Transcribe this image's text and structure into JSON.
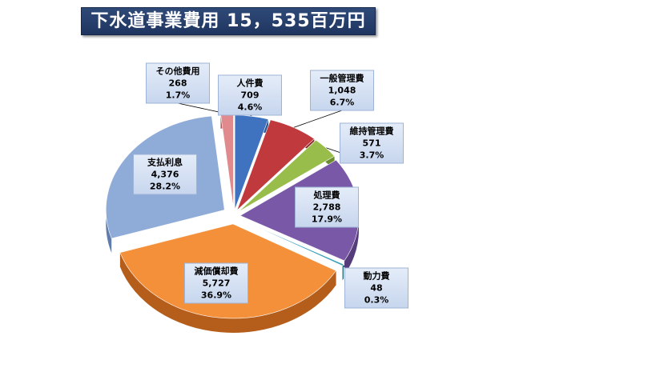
{
  "chart_data": {
    "type": "pie",
    "title": "下水道事業費用",
    "total_text": "15，535百万円",
    "slices": [
      {
        "name": "人件費",
        "value": "709",
        "pct": "4.6%",
        "v": 709,
        "color": "#3f73c0",
        "side": "#2a548f"
      },
      {
        "name": "一般管理費",
        "value": "1,048",
        "pct": "6.7%",
        "v": 1048,
        "color": "#c0393d",
        "side": "#8c2528"
      },
      {
        "name": "維持管理費",
        "value": "571",
        "pct": "3.7%",
        "v": 571,
        "color": "#98bd4a",
        "side": "#6d8c31"
      },
      {
        "name": "処理費",
        "value": "2,788",
        "pct": "17.9%",
        "v": 2788,
        "color": "#7a58a8",
        "side": "#553c7a"
      },
      {
        "name": "動力費",
        "value": "48",
        "pct": "0.3%",
        "v": 48,
        "color": "#3aa0b8",
        "side": "#1f6a7d"
      },
      {
        "name": "減価償却費",
        "value": "5,727",
        "pct": "36.9%",
        "v": 5727,
        "color": "#f5903a",
        "side": "#b55e1c"
      },
      {
        "name": "支払利息",
        "value": "4,376",
        "pct": "28.2%",
        "v": 4376,
        "color": "#8fabd8",
        "side": "#5f7cab"
      },
      {
        "name": "その他費用",
        "value": "268",
        "pct": "1.7%",
        "v": 268,
        "color": "#e08a8e",
        "side": "#a85a5e"
      }
    ]
  }
}
